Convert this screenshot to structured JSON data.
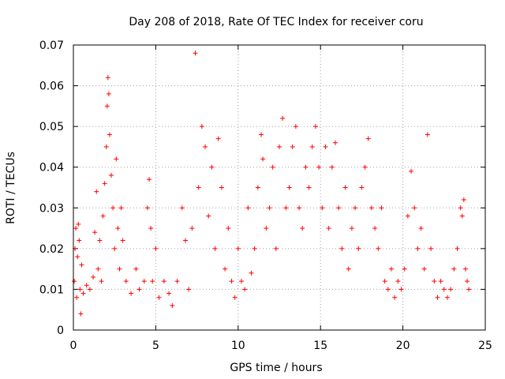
{
  "chart_data": {
    "type": "scatter",
    "title": "Day 208 of 2018, Rate Of TEC Index for receiver coru",
    "xlabel": "GPS time / hours",
    "ylabel": "ROTI / TECUs",
    "xlim": [
      0,
      25
    ],
    "ylim": [
      0,
      0.07
    ],
    "x_ticks": [
      0,
      5,
      10,
      15,
      20,
      25
    ],
    "x_tick_labels": [
      "0",
      "5",
      "10",
      "15",
      "20",
      "25"
    ],
    "y_ticks": [
      0,
      0.01,
      0.02,
      0.03,
      0.04,
      0.05,
      0.06,
      0.07
    ],
    "y_tick_labels": [
      "0",
      "0.01",
      "0.02",
      "0.03",
      "0.04",
      "0.05",
      "0.06",
      "0.07"
    ],
    "grid": true,
    "marker": "plus",
    "marker_color": "#ff0000",
    "series": [
      {
        "points": [
          [
            0.05,
            0.012
          ],
          [
            0.1,
            0.02
          ],
          [
            0.15,
            0.025
          ],
          [
            0.2,
            0.008
          ],
          [
            0.25,
            0.018
          ],
          [
            0.3,
            0.026
          ],
          [
            0.35,
            0.022
          ],
          [
            0.4,
            0.01
          ],
          [
            0.45,
            0.004
          ],
          [
            0.5,
            0.016
          ],
          [
            0.6,
            0.009
          ],
          [
            0.8,
            0.011
          ],
          [
            1.0,
            0.01
          ],
          [
            1.2,
            0.013
          ],
          [
            1.3,
            0.024
          ],
          [
            1.4,
            0.034
          ],
          [
            1.5,
            0.015
          ],
          [
            1.6,
            0.022
          ],
          [
            1.7,
            0.012
          ],
          [
            1.8,
            0.028
          ],
          [
            1.9,
            0.036
          ],
          [
            2.0,
            0.045
          ],
          [
            2.05,
            0.055
          ],
          [
            2.1,
            0.062
          ],
          [
            2.15,
            0.058
          ],
          [
            2.2,
            0.048
          ],
          [
            2.3,
            0.038
          ],
          [
            2.4,
            0.03
          ],
          [
            2.5,
            0.02
          ],
          [
            2.6,
            0.042
          ],
          [
            2.7,
            0.025
          ],
          [
            2.8,
            0.015
          ],
          [
            2.9,
            0.03
          ],
          [
            3.0,
            0.022
          ],
          [
            3.2,
            0.012
          ],
          [
            3.5,
            0.009
          ],
          [
            3.8,
            0.015
          ],
          [
            4.0,
            0.01
          ],
          [
            4.3,
            0.012
          ],
          [
            4.5,
            0.03
          ],
          [
            4.6,
            0.037
          ],
          [
            4.7,
            0.025
          ],
          [
            4.8,
            0.012
          ],
          [
            5.0,
            0.02
          ],
          [
            5.2,
            0.008
          ],
          [
            5.5,
            0.012
          ],
          [
            5.8,
            0.009
          ],
          [
            6.0,
            0.006
          ],
          [
            6.3,
            0.012
          ],
          [
            6.6,
            0.03
          ],
          [
            6.8,
            0.022
          ],
          [
            7.0,
            0.01
          ],
          [
            7.2,
            0.025
          ],
          [
            7.4,
            0.068
          ],
          [
            7.6,
            0.035
          ],
          [
            7.8,
            0.05
          ],
          [
            8.0,
            0.045
          ],
          [
            8.2,
            0.028
          ],
          [
            8.4,
            0.04
          ],
          [
            8.6,
            0.02
          ],
          [
            8.8,
            0.047
          ],
          [
            9.0,
            0.035
          ],
          [
            9.2,
            0.015
          ],
          [
            9.4,
            0.025
          ],
          [
            9.6,
            0.012
          ],
          [
            9.8,
            0.008
          ],
          [
            10.0,
            0.02
          ],
          [
            10.2,
            0.012
          ],
          [
            10.4,
            0.01
          ],
          [
            10.6,
            0.03
          ],
          [
            10.8,
            0.014
          ],
          [
            11.0,
            0.02
          ],
          [
            11.2,
            0.035
          ],
          [
            11.4,
            0.048
          ],
          [
            11.5,
            0.042
          ],
          [
            11.7,
            0.025
          ],
          [
            11.9,
            0.03
          ],
          [
            12.1,
            0.04
          ],
          [
            12.3,
            0.02
          ],
          [
            12.5,
            0.045
          ],
          [
            12.7,
            0.052
          ],
          [
            12.9,
            0.03
          ],
          [
            13.1,
            0.035
          ],
          [
            13.3,
            0.045
          ],
          [
            13.5,
            0.05
          ],
          [
            13.7,
            0.03
          ],
          [
            13.9,
            0.025
          ],
          [
            14.1,
            0.04
          ],
          [
            14.3,
            0.035
          ],
          [
            14.5,
            0.045
          ],
          [
            14.7,
            0.05
          ],
          [
            14.9,
            0.04
          ],
          [
            15.1,
            0.03
          ],
          [
            15.3,
            0.045
          ],
          [
            15.5,
            0.025
          ],
          [
            15.7,
            0.04
          ],
          [
            15.9,
            0.046
          ],
          [
            16.1,
            0.03
          ],
          [
            16.3,
            0.02
          ],
          [
            16.5,
            0.035
          ],
          [
            16.7,
            0.015
          ],
          [
            16.9,
            0.025
          ],
          [
            17.1,
            0.03
          ],
          [
            17.3,
            0.02
          ],
          [
            17.5,
            0.035
          ],
          [
            17.7,
            0.04
          ],
          [
            17.9,
            0.047
          ],
          [
            18.1,
            0.03
          ],
          [
            18.3,
            0.025
          ],
          [
            18.5,
            0.02
          ],
          [
            18.7,
            0.03
          ],
          [
            18.9,
            0.012
          ],
          [
            19.1,
            0.01
          ],
          [
            19.3,
            0.015
          ],
          [
            19.5,
            0.008
          ],
          [
            19.7,
            0.012
          ],
          [
            19.9,
            0.01
          ],
          [
            20.1,
            0.015
          ],
          [
            20.3,
            0.028
          ],
          [
            20.5,
            0.039
          ],
          [
            20.7,
            0.03
          ],
          [
            20.9,
            0.02
          ],
          [
            21.1,
            0.025
          ],
          [
            21.3,
            0.015
          ],
          [
            21.5,
            0.048
          ],
          [
            21.7,
            0.02
          ],
          [
            21.9,
            0.012
          ],
          [
            22.1,
            0.008
          ],
          [
            22.3,
            0.012
          ],
          [
            22.5,
            0.01
          ],
          [
            22.7,
            0.008
          ],
          [
            22.9,
            0.01
          ],
          [
            23.1,
            0.015
          ],
          [
            23.3,
            0.02
          ],
          [
            23.5,
            0.03
          ],
          [
            23.6,
            0.028
          ],
          [
            23.7,
            0.032
          ],
          [
            23.8,
            0.015
          ],
          [
            23.9,
            0.012
          ],
          [
            24.0,
            0.01
          ]
        ]
      }
    ]
  }
}
